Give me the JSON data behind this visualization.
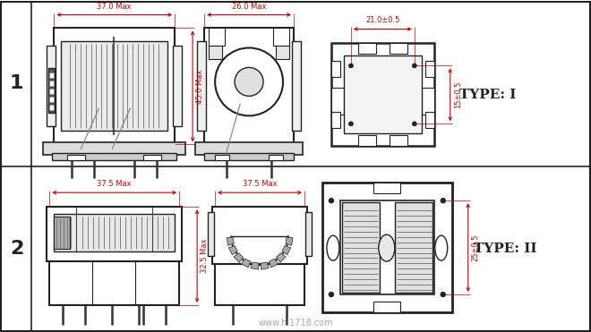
{
  "bg_color": "#ffffff",
  "line_color": "#222222",
  "dim_color": "#cc0000",
  "row1_label": "1",
  "row2_label": "2",
  "type1_label": "TYPE: I",
  "type2_label": "TYPE: II",
  "watermark": "www.hi1718.com",
  "dims": {
    "r1_w1": "37.0 Max",
    "r1_h1": "45.0 Max",
    "r1_w2": "26.0 Max",
    "r1_top_w": "21.0±0.5",
    "r1_side_h": "15±0.5",
    "r2_w1": "37.5 Max",
    "r2_h1": "32.5 Max",
    "r2_w2": "37.5 Max",
    "r2_side_h": "25±0.5"
  }
}
